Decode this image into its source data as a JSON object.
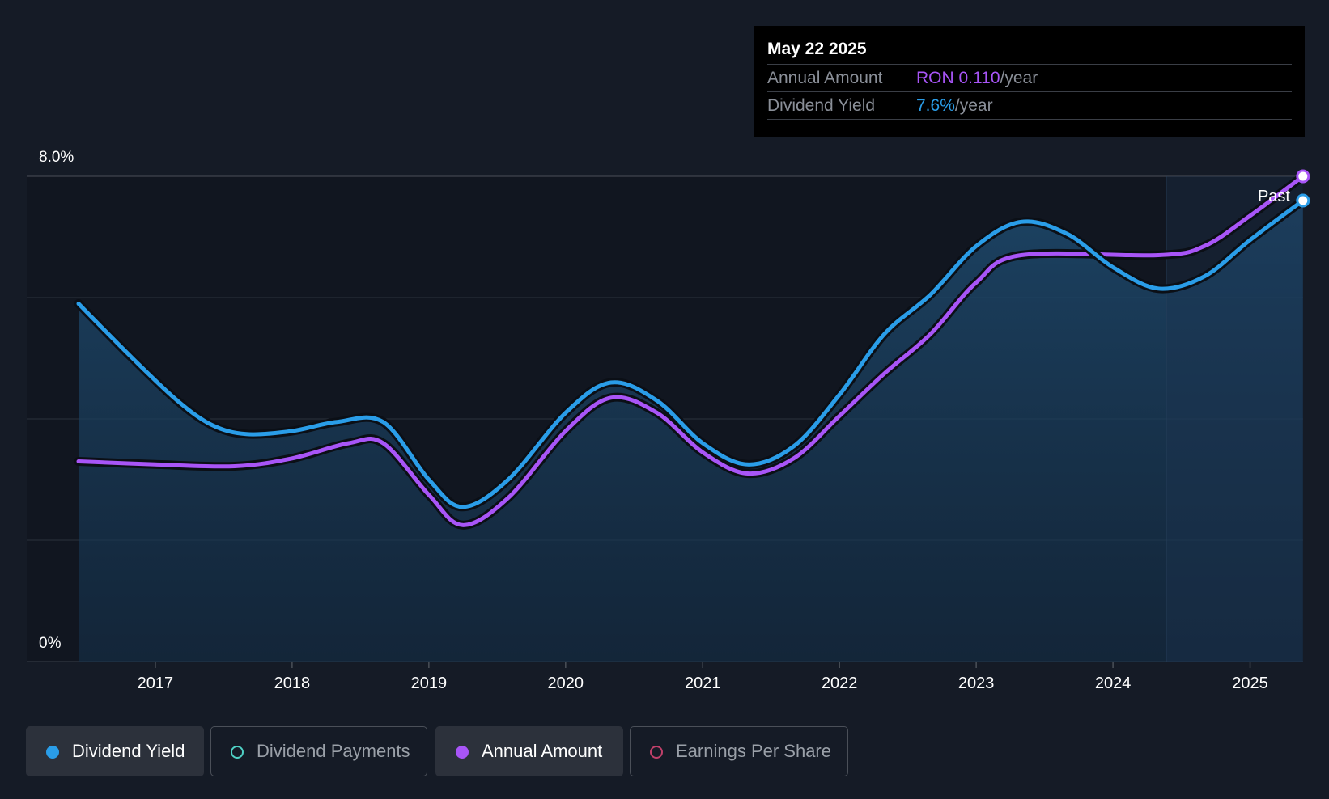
{
  "chart_data": {
    "type": "line",
    "y_axis": {
      "ticks": [
        "8.0%",
        "0%"
      ],
      "ylim": [
        0,
        8.0
      ]
    },
    "x_axis": {
      "ticks": [
        "2017",
        "2018",
        "2019",
        "2020",
        "2021",
        "2022",
        "2023",
        "2024",
        "2025"
      ]
    },
    "past_label": "Past",
    "series": [
      {
        "name": "Dividend Yield",
        "color": "#2a9de8",
        "points": [
          [
            "2016-06-10",
            5.9
          ],
          [
            "2016-11-01",
            5.0
          ],
          [
            "2017-03-01",
            4.3
          ],
          [
            "2017-06-01",
            3.9
          ],
          [
            "2017-09-01",
            3.75
          ],
          [
            "2018-01-01",
            3.8
          ],
          [
            "2018-05-01",
            3.95
          ],
          [
            "2018-09-01",
            3.95
          ],
          [
            "2019-01-01",
            3.0
          ],
          [
            "2019-04-01",
            2.55
          ],
          [
            "2019-08-01",
            3.0
          ],
          [
            "2020-01-01",
            4.1
          ],
          [
            "2020-05-01",
            4.6
          ],
          [
            "2020-09-01",
            4.3
          ],
          [
            "2021-01-01",
            3.6
          ],
          [
            "2021-05-01",
            3.25
          ],
          [
            "2021-09-01",
            3.55
          ],
          [
            "2022-01-01",
            4.4
          ],
          [
            "2022-05-01",
            5.4
          ],
          [
            "2022-09-01",
            6.05
          ],
          [
            "2023-01-01",
            6.85
          ],
          [
            "2023-05-01",
            7.25
          ],
          [
            "2023-09-01",
            7.05
          ],
          [
            "2024-01-01",
            6.5
          ],
          [
            "2024-05-01",
            6.15
          ],
          [
            "2024-09-01",
            6.35
          ],
          [
            "2025-01-01",
            6.95
          ],
          [
            "2025-05-22",
            7.6
          ]
        ]
      },
      {
        "name": "Annual Amount",
        "color": "#a855f7",
        "points": [
          [
            "2016-06-10",
            3.3
          ],
          [
            "2017-01-01",
            3.25
          ],
          [
            "2017-08-01",
            3.22
          ],
          [
            "2018-01-01",
            3.35
          ],
          [
            "2018-06-01",
            3.6
          ],
          [
            "2018-09-01",
            3.6
          ],
          [
            "2019-01-01",
            2.75
          ],
          [
            "2019-04-01",
            2.25
          ],
          [
            "2019-08-01",
            2.7
          ],
          [
            "2020-01-01",
            3.8
          ],
          [
            "2020-05-01",
            4.35
          ],
          [
            "2020-09-01",
            4.1
          ],
          [
            "2021-01-01",
            3.45
          ],
          [
            "2021-05-01",
            3.1
          ],
          [
            "2021-09-01",
            3.35
          ],
          [
            "2022-01-01",
            4.05
          ],
          [
            "2022-05-01",
            4.75
          ],
          [
            "2022-09-01",
            5.4
          ],
          [
            "2023-01-01",
            6.25
          ],
          [
            "2023-05-01",
            6.7
          ],
          [
            "2024-05-01",
            6.7
          ],
          [
            "2024-09-01",
            6.85
          ],
          [
            "2025-01-01",
            7.35
          ],
          [
            "2025-05-22",
            8.0
          ]
        ]
      }
    ]
  },
  "tooltip": {
    "date": "May 22 2025",
    "annual_label": "Annual Amount",
    "annual_value": "RON 0.110",
    "annual_unit": "/year",
    "yield_label": "Dividend Yield",
    "yield_value": "7.6%",
    "yield_unit": "/year"
  },
  "legend": [
    {
      "label": "Dividend Yield",
      "color": "#2a9de8",
      "active": true
    },
    {
      "label": "Dividend Payments",
      "color": "#4fd1c5",
      "active": false
    },
    {
      "label": "Annual Amount",
      "color": "#a855f7",
      "active": true
    },
    {
      "label": "Earnings Per Share",
      "color": "#c0406a",
      "active": false
    }
  ]
}
